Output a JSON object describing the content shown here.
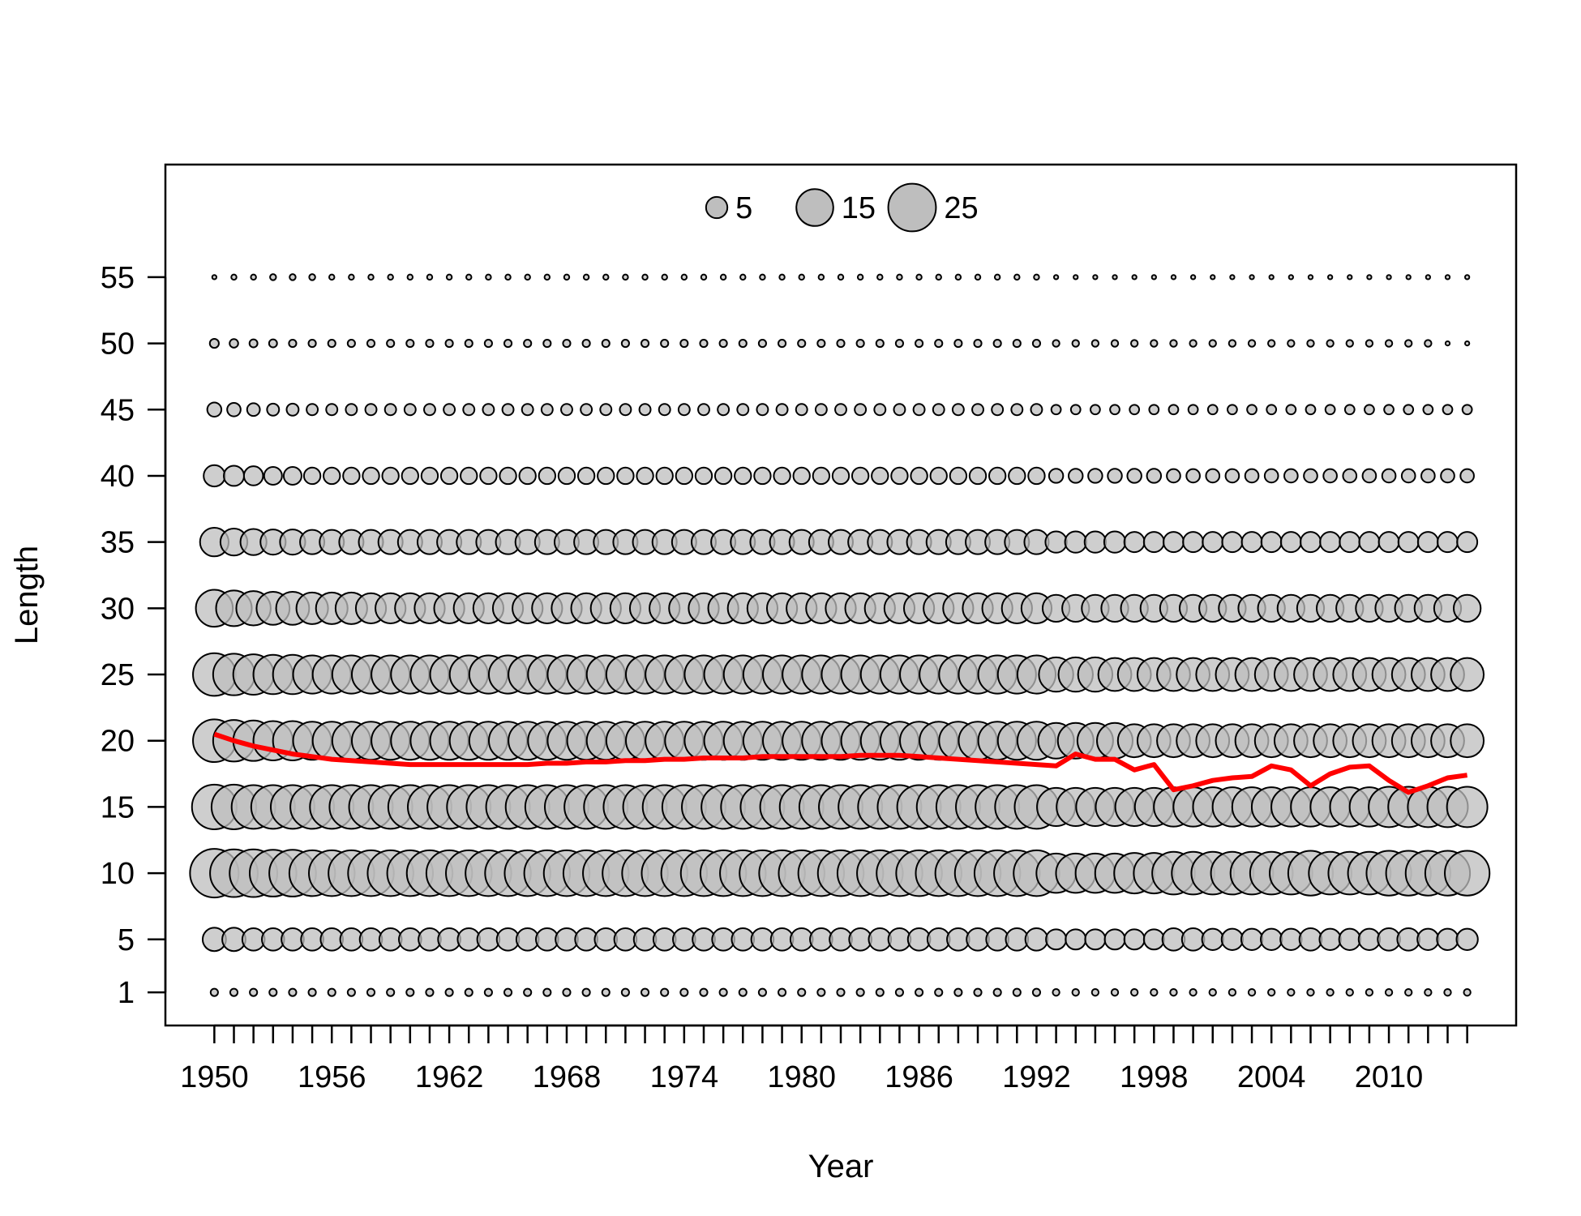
{
  "chart_data": {
    "type": "scatter",
    "title": "",
    "xlabel": "Year",
    "ylabel": "Length",
    "xlim": [
      1947.5,
      2016.5
    ],
    "ylim": [
      -1.5,
      63.5
    ],
    "grid": false,
    "x_ticks": [
      1950,
      1956,
      1962,
      1968,
      1974,
      1980,
      1986,
      1992,
      1998,
      2004,
      2010
    ],
    "y_ticks": [
      1,
      5,
      10,
      15,
      20,
      25,
      30,
      35,
      40,
      45,
      50,
      55
    ],
    "years": [
      1950,
      1951,
      1952,
      1953,
      1954,
      1955,
      1956,
      1957,
      1958,
      1959,
      1960,
      1961,
      1962,
      1963,
      1964,
      1965,
      1966,
      1967,
      1968,
      1969,
      1970,
      1971,
      1972,
      1973,
      1974,
      1975,
      1976,
      1977,
      1978,
      1979,
      1980,
      1981,
      1982,
      1983,
      1984,
      1985,
      1986,
      1987,
      1988,
      1989,
      1990,
      1991,
      1992,
      1993,
      1994,
      1995,
      1996,
      1997,
      1998,
      1999,
      2000,
      2001,
      2002,
      2003,
      2004,
      2005,
      2006,
      2007,
      2008,
      2009,
      2010,
      2011,
      2012,
      2013,
      2014
    ],
    "lengths": [
      1,
      5,
      10,
      15,
      20,
      25,
      30,
      35,
      40,
      45,
      50,
      55
    ],
    "bubble_values": {
      "1": [
        0.6,
        0.6,
        0.6,
        0.6,
        0.6,
        0.6,
        0.6,
        0.6,
        0.6,
        0.6,
        0.6,
        0.6,
        0.6,
        0.6,
        0.6,
        0.6,
        0.6,
        0.6,
        0.6,
        0.6,
        0.6,
        0.6,
        0.6,
        0.6,
        0.6,
        0.6,
        0.6,
        0.6,
        0.6,
        0.6,
        0.6,
        0.6,
        0.6,
        0.6,
        0.6,
        0.6,
        0.6,
        0.6,
        0.6,
        0.6,
        0.6,
        0.6,
        0.6,
        0.5,
        0.5,
        0.5,
        0.5,
        0.5,
        0.5,
        0.5,
        0.5,
        0.5,
        0.5,
        0.5,
        0.5,
        0.5,
        0.5,
        0.5,
        0.5,
        0.5,
        0.5,
        0.5,
        0.5,
        0.5,
        0.5
      ],
      "5": [
        6,
        6,
        5.5,
        5.5,
        5.5,
        5.5,
        5.5,
        5.5,
        5.5,
        5.5,
        5.5,
        5.5,
        5.5,
        5.5,
        5.5,
        5.5,
        5.5,
        5.5,
        5.5,
        5.5,
        5.5,
        5.5,
        5.5,
        5.5,
        5.5,
        5.5,
        5.5,
        5.5,
        5.5,
        5.5,
        5.5,
        5.5,
        5.5,
        5.5,
        5.5,
        5.5,
        5.5,
        5.5,
        5.5,
        5.5,
        5.5,
        5.5,
        5.5,
        4.5,
        4.5,
        4.5,
        4.5,
        4.5,
        4.5,
        5.5,
        5.5,
        5,
        5,
        5,
        5,
        5,
        5.5,
        5,
        5,
        5,
        5.5,
        5.5,
        5,
        5,
        5
      ],
      "10": [
        26,
        25,
        25,
        24,
        24,
        23,
        23,
        23,
        23,
        23,
        23,
        23,
        23,
        23,
        23,
        23,
        23,
        23,
        23,
        23,
        23,
        23,
        23,
        23,
        23,
        23,
        23,
        23,
        23,
        23,
        23,
        23,
        23,
        23,
        23,
        23,
        23,
        23,
        23,
        23,
        23,
        23,
        23,
        17,
        17,
        17,
        17,
        18,
        18,
        20,
        20,
        20,
        20,
        20,
        20,
        20,
        22,
        20,
        20,
        20,
        22,
        22,
        22,
        22,
        22
      ],
      "15": [
        22,
        22,
        21,
        21,
        21,
        21,
        21,
        21,
        21,
        21,
        21,
        21,
        21,
        21,
        21,
        21,
        21,
        21,
        21,
        21,
        21,
        21,
        21,
        21,
        21,
        21,
        21,
        21,
        21,
        21,
        21,
        21,
        21,
        21,
        21,
        21,
        21,
        21,
        21,
        21,
        21,
        21,
        21,
        16,
        16,
        16,
        16,
        16,
        16,
        17,
        17,
        17,
        17,
        17,
        17,
        17,
        17,
        17,
        17,
        17,
        18,
        18,
        18,
        18,
        18
      ],
      "20": [
        20,
        19,
        18,
        17,
        17,
        16,
        16,
        16,
        16,
        16,
        16,
        16,
        16,
        16,
        16,
        16,
        16,
        16,
        16,
        16,
        16,
        16,
        16,
        16,
        16,
        16,
        16,
        16,
        16,
        16,
        16,
        16,
        16,
        16,
        16,
        16,
        16,
        16,
        16,
        16,
        16,
        16,
        16,
        14,
        14,
        14,
        14,
        12,
        12,
        12,
        12,
        12,
        12,
        12,
        12,
        12,
        12,
        12,
        12,
        12,
        12,
        12,
        12,
        12,
        12
      ],
      "25": [
        20,
        19,
        18,
        17,
        17,
        16,
        16,
        16,
        16,
        16,
        16,
        16,
        16,
        16,
        16,
        16,
        16,
        16,
        16,
        16,
        16,
        16,
        16,
        16,
        16,
        16,
        16,
        16,
        16,
        16,
        16,
        16,
        16,
        16,
        16,
        16,
        16,
        16,
        16,
        16,
        16,
        16,
        16,
        13,
        13,
        13,
        12,
        12,
        12,
        12,
        12,
        12,
        12,
        12,
        12,
        12,
        12,
        12,
        12,
        12,
        12,
        12,
        12,
        12,
        12
      ],
      "30": [
        15,
        14,
        13,
        12,
        12,
        11,
        11,
        11,
        10,
        10,
        10,
        10,
        10,
        10,
        10,
        10,
        10,
        10,
        10,
        10,
        10,
        10,
        10,
        10,
        10,
        10,
        10,
        10,
        10,
        10,
        10,
        10,
        10,
        10,
        10,
        10,
        10,
        10,
        10,
        10,
        10,
        10,
        10,
        8,
        8,
        8,
        8,
        8,
        8,
        8,
        8,
        8,
        8,
        8,
        8,
        8,
        8,
        8,
        8,
        8,
        8,
        8,
        8,
        8,
        8
      ],
      "35": [
        9,
        8,
        7.5,
        7,
        7,
        6.5,
        6.5,
        6.5,
        6.5,
        6.5,
        6.5,
        6.5,
        6.5,
        6.5,
        6.5,
        6.5,
        6.5,
        6.5,
        6.5,
        6.5,
        6.5,
        6.5,
        6.5,
        6.5,
        6.5,
        6.5,
        6.5,
        6.5,
        6.5,
        6.5,
        6.5,
        6.5,
        6.5,
        6.5,
        6.5,
        6.5,
        6.5,
        6.5,
        6.5,
        6.5,
        6.5,
        6.5,
        6.5,
        5,
        5,
        5,
        5,
        4.5,
        4.5,
        4.5,
        4.5,
        4.5,
        4.5,
        4.5,
        4.5,
        4.5,
        4.5,
        4.5,
        4.5,
        4.5,
        4.5,
        4.5,
        4.5,
        4.5,
        4.5
      ],
      "40": [
        5,
        4.5,
        4,
        3.5,
        3.5,
        3,
        3,
        3,
        3,
        3,
        3,
        3,
        3,
        3,
        3,
        3,
        3,
        3,
        3,
        3,
        3,
        3,
        3,
        3,
        3,
        3,
        3,
        3,
        3,
        3,
        3,
        3,
        3,
        3,
        3,
        3,
        3,
        3,
        3,
        3,
        3,
        3,
        3,
        2.2,
        2.2,
        2.2,
        2.2,
        2.2,
        2.2,
        2,
        2,
        2,
        2,
        2,
        2,
        2,
        2,
        2,
        2,
        2,
        2,
        2,
        2,
        2,
        2
      ],
      "45": [
        2.2,
        2,
        1.8,
        1.6,
        1.6,
        1.4,
        1.4,
        1.4,
        1.4,
        1.4,
        1.4,
        1.4,
        1.4,
        1.4,
        1.4,
        1.4,
        1.4,
        1.4,
        1.4,
        1.4,
        1.4,
        1.4,
        1.4,
        1.4,
        1.4,
        1.4,
        1.4,
        1.4,
        1.4,
        1.4,
        1.4,
        1.4,
        1.4,
        1.4,
        1.4,
        1.4,
        1.4,
        1.4,
        1.4,
        1.4,
        1.4,
        1.4,
        1.4,
        1,
        1,
        1,
        1,
        1,
        1,
        1,
        1,
        1,
        1,
        1,
        1,
        1,
        1,
        1,
        1,
        1,
        1,
        1,
        1,
        1,
        1
      ],
      "50": [
        0.9,
        0.8,
        0.7,
        0.7,
        0.6,
        0.6,
        0.6,
        0.6,
        0.6,
        0.6,
        0.6,
        0.6,
        0.6,
        0.6,
        0.6,
        0.6,
        0.6,
        0.6,
        0.6,
        0.6,
        0.6,
        0.6,
        0.6,
        0.6,
        0.6,
        0.6,
        0.6,
        0.6,
        0.6,
        0.6,
        0.6,
        0.6,
        0.6,
        0.6,
        0.6,
        0.6,
        0.6,
        0.6,
        0.6,
        0.6,
        0.6,
        0.6,
        0.6,
        0.5,
        0.5,
        0.5,
        0.5,
        0.5,
        0.5,
        0.5,
        0.5,
        0.5,
        0.5,
        0.5,
        0.5,
        0.5,
        0.5,
        0.5,
        0.5,
        0.5,
        0.5,
        0.5,
        0.5,
        0.2,
        0.2
      ],
      "55": [
        0.2,
        0.3,
        0.3,
        0.4,
        0.4,
        0.4,
        0.3,
        0.3,
        0.3,
        0.3,
        0.3,
        0.3,
        0.3,
        0.3,
        0.3,
        0.3,
        0.3,
        0.3,
        0.3,
        0.3,
        0.3,
        0.3,
        0.3,
        0.3,
        0.3,
        0.3,
        0.3,
        0.3,
        0.3,
        0.3,
        0.3,
        0.3,
        0.3,
        0.3,
        0.3,
        0.3,
        0.3,
        0.3,
        0.3,
        0.3,
        0.3,
        0.3,
        0.3,
        0.2,
        0.2,
        0.2,
        0.2,
        0.2,
        0.2,
        0.2,
        0.2,
        0.2,
        0.2,
        0.2,
        0.2,
        0.2,
        0.2,
        0.2,
        0.2,
        0.2,
        0.2,
        0.2,
        0.2,
        0.2,
        0.2
      ]
    },
    "mean_length_line": {
      "color": "#ff0000",
      "values": [
        20.5,
        20,
        19.6,
        19.3,
        19,
        18.8,
        18.6,
        18.5,
        18.4,
        18.3,
        18.2,
        18.2,
        18.2,
        18.2,
        18.2,
        18.2,
        18.2,
        18.3,
        18.3,
        18.4,
        18.4,
        18.5,
        18.5,
        18.6,
        18.6,
        18.7,
        18.7,
        18.7,
        18.8,
        18.8,
        18.8,
        18.8,
        18.8,
        18.9,
        18.9,
        18.9,
        18.8,
        18.7,
        18.6,
        18.5,
        18.4,
        18.3,
        18.2,
        18.1,
        19,
        18.6,
        18.6,
        17.8,
        18.2,
        16.3,
        16.6,
        17,
        17.2,
        17.3,
        18.1,
        17.8,
        16.6,
        17.5,
        18,
        18.1,
        17,
        16.1,
        16.6,
        17.2,
        17.4
      ]
    },
    "legend": {
      "placement": "top",
      "entries": [
        "5",
        "15",
        "25"
      ],
      "values": [
        5,
        15,
        25
      ]
    },
    "bubble_fill": "#bebebe",
    "bubble_stroke": "#000000",
    "bubble_fill_opacity": 0.75
  }
}
